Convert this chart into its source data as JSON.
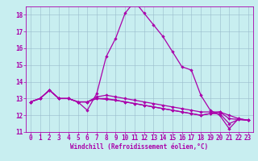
{
  "xlabel": "Windchill (Refroidissement éolien,°C)",
  "background_color": "#c8eef0",
  "line_color": "#aa00aa",
  "grid_color": "#99bbcc",
  "hours": [
    0,
    1,
    2,
    3,
    4,
    5,
    6,
    7,
    8,
    9,
    10,
    11,
    12,
    13,
    14,
    15,
    16,
    17,
    18,
    19,
    20,
    21,
    22,
    23
  ],
  "curve1": [
    12.8,
    13.0,
    13.5,
    13.0,
    13.0,
    12.8,
    12.3,
    13.3,
    15.5,
    16.6,
    18.1,
    18.8,
    18.1,
    17.4,
    16.7,
    15.8,
    14.9,
    14.7,
    13.2,
    12.3,
    12.0,
    11.2,
    11.8,
    11.7
  ],
  "curve2": [
    12.8,
    13.0,
    13.5,
    13.0,
    13.0,
    12.8,
    12.8,
    13.1,
    13.2,
    13.1,
    13.0,
    12.9,
    12.8,
    12.7,
    12.6,
    12.5,
    12.4,
    12.3,
    12.2,
    12.2,
    12.2,
    12.0,
    11.8,
    11.7
  ],
  "curve3": [
    12.8,
    13.0,
    13.5,
    13.0,
    13.0,
    12.8,
    12.8,
    13.0,
    13.0,
    12.9,
    12.8,
    12.7,
    12.6,
    12.5,
    12.4,
    12.3,
    12.2,
    12.1,
    12.0,
    12.1,
    12.2,
    11.8,
    11.75,
    11.7
  ],
  "curve4": [
    12.8,
    13.0,
    13.5,
    13.0,
    13.0,
    12.8,
    12.8,
    13.0,
    12.95,
    12.9,
    12.8,
    12.7,
    12.6,
    12.5,
    12.4,
    12.3,
    12.2,
    12.1,
    12.0,
    12.1,
    12.1,
    11.5,
    11.75,
    11.7
  ],
  "ylim": [
    11.0,
    18.5
  ],
  "yticks": [
    11,
    12,
    13,
    14,
    15,
    16,
    17,
    18
  ],
  "xlim": [
    -0.5,
    23.5
  ],
  "xticks": [
    0,
    1,
    2,
    3,
    4,
    5,
    6,
    7,
    8,
    9,
    10,
    11,
    12,
    13,
    14,
    15,
    16,
    17,
    18,
    19,
    20,
    21,
    22,
    23
  ],
  "tick_fontsize": 5.5,
  "xlabel_fontsize": 5.5
}
